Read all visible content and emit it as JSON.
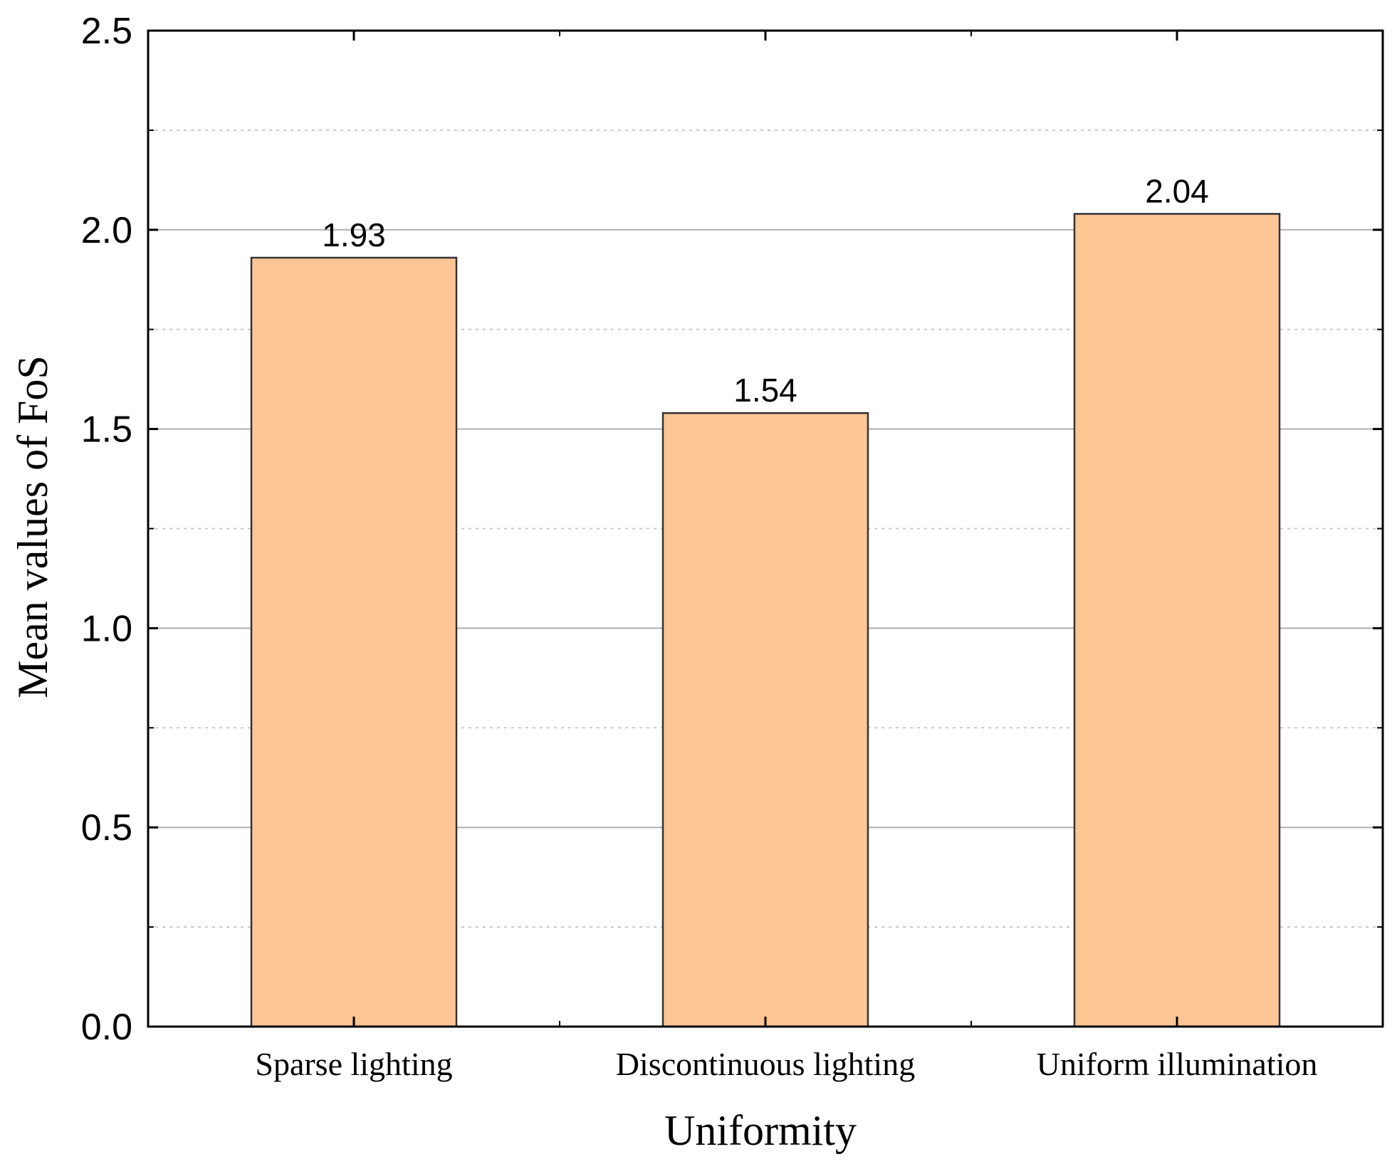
{
  "chart_data": {
    "type": "bar",
    "categories": [
      "Sparse lighting",
      "Discontinuous lighting",
      "Uniform illumination"
    ],
    "values": [
      1.93,
      1.54,
      2.04
    ],
    "data_labels": [
      "1.93",
      "1.54",
      "2.04"
    ],
    "xlabel": "Uniformity",
    "ylabel": "Mean values of FoS",
    "ylim": [
      0,
      2.5
    ],
    "yticks": [
      0.0,
      0.5,
      1.0,
      1.5,
      2.0,
      2.5
    ],
    "ytick_labels": [
      "0.0",
      "0.5",
      "1.0",
      "1.5",
      "2.0",
      "2.5"
    ],
    "minor_gridlines": [
      0.25,
      0.75,
      1.25,
      1.75,
      2.25
    ],
    "grid": true,
    "legend": "none",
    "bar_color": "#fcc594",
    "bar_edge_color": "#333333",
    "major_grid_color": "#b0b0b0",
    "minor_grid_color": "#c8c8c8"
  }
}
